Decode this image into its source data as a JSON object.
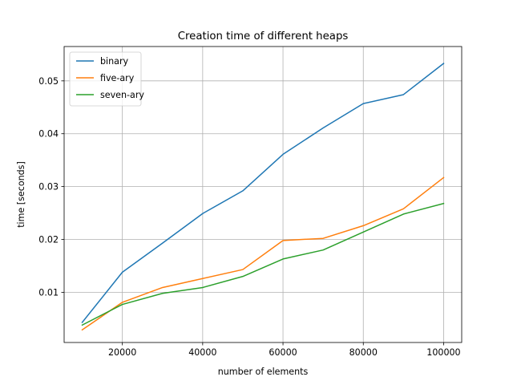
{
  "chart_data": {
    "type": "line",
    "title": "Creation time of different heaps",
    "xlabel": "number of elements",
    "ylabel": "time [seconds]",
    "xlim": [
      5500,
      104500
    ],
    "ylim": [
      0.0005,
      0.0565
    ],
    "xticks": [
      20000,
      40000,
      60000,
      80000,
      100000
    ],
    "xtick_labels": [
      "20000",
      "40000",
      "60000",
      "80000",
      "100000"
    ],
    "yticks": [
      0.01,
      0.02,
      0.03,
      0.04,
      0.05
    ],
    "ytick_labels": [
      "0.01",
      "0.02",
      "0.03",
      "0.04",
      "0.05"
    ],
    "grid": true,
    "legend_position": "top-left",
    "x": [
      10000,
      20000,
      30000,
      40000,
      50000,
      60000,
      70000,
      80000,
      90000,
      100000
    ],
    "series": [
      {
        "name": "binary",
        "color": "#1f77b4",
        "values": [
          0.0043,
          0.0138,
          0.0193,
          0.0249,
          0.0292,
          0.0361,
          0.0411,
          0.0457,
          0.0474,
          0.0533
        ]
      },
      {
        "name": "five-ary",
        "color": "#ff7f0e",
        "values": [
          0.0029,
          0.0081,
          0.0109,
          0.0126,
          0.0143,
          0.0198,
          0.0202,
          0.0226,
          0.0258,
          0.0317
        ]
      },
      {
        "name": "seven-ary",
        "color": "#2ca02c",
        "values": [
          0.0038,
          0.0077,
          0.0098,
          0.0109,
          0.013,
          0.0163,
          0.018,
          0.0214,
          0.0248,
          0.0268
        ]
      }
    ]
  }
}
